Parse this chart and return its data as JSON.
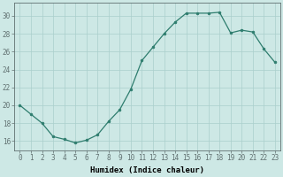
{
  "x": [
    0,
    1,
    2,
    3,
    4,
    5,
    6,
    7,
    8,
    9,
    10,
    11,
    12,
    13,
    14,
    15,
    16,
    17,
    18,
    19,
    20,
    21,
    22,
    23
  ],
  "y": [
    20,
    19,
    18,
    16.5,
    16.2,
    15.8,
    16.1,
    16.7,
    18.2,
    19.5,
    21.8,
    25.0,
    26.5,
    28.0,
    29.3,
    30.3,
    30.3,
    30.3,
    30.4,
    28.1,
    28.4,
    28.2,
    26.3,
    24.8
  ],
  "line_color": "#2e7d6e",
  "marker": "o",
  "marker_size": 2,
  "bg_color": "#cde8e5",
  "grid_color": "#aacfcc",
  "xlabel": "Humidex (Indice chaleur)",
  "xlim": [
    -0.5,
    23.5
  ],
  "ylim": [
    15.0,
    31.5
  ],
  "yticks": [
    16,
    18,
    20,
    22,
    24,
    26,
    28,
    30
  ],
  "xticks": [
    0,
    1,
    2,
    3,
    4,
    5,
    6,
    7,
    8,
    9,
    10,
    11,
    12,
    13,
    14,
    15,
    16,
    17,
    18,
    19,
    20,
    21,
    22,
    23
  ],
  "xlabel_fontsize": 6.5,
  "tick_fontsize": 5.5
}
